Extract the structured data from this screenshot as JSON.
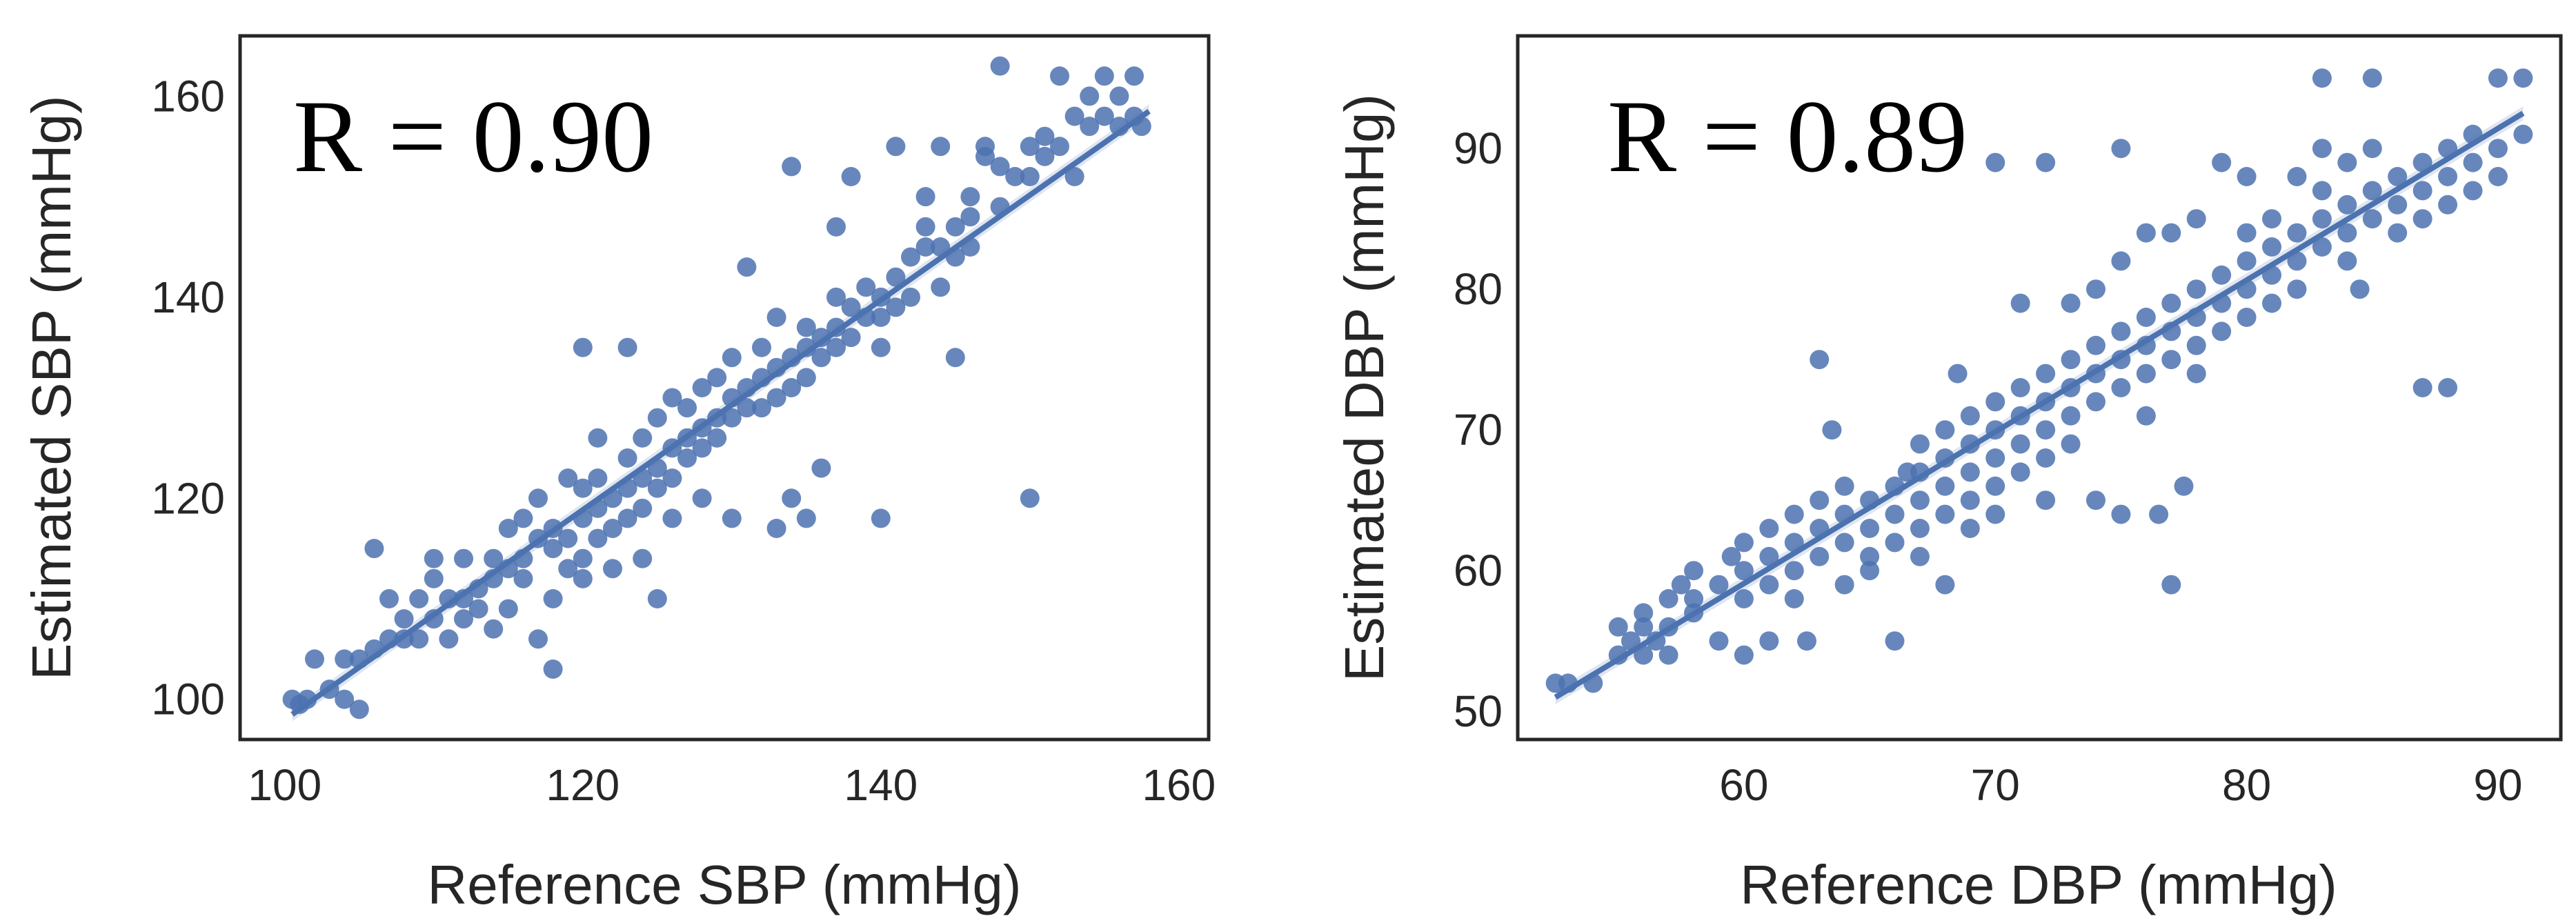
{
  "chart_data": [
    {
      "type": "scatter",
      "xlabel": "Reference SBP (mmHg)",
      "ylabel": "Estimated SBP (mmHg)",
      "annotation": "R = 0.90",
      "xlim": [
        97,
        162
      ],
      "ylim": [
        96,
        166
      ],
      "xticks": [
        100,
        120,
        140,
        160
      ],
      "yticks": [
        100,
        120,
        140,
        160
      ],
      "fit_line": {
        "x": [
          100.5,
          158
        ],
        "y": [
          98.5,
          158.5
        ]
      },
      "points": [
        [
          100.5,
          100
        ],
        [
          101,
          99.5
        ],
        [
          101.5,
          100
        ],
        [
          102,
          104
        ],
        [
          103,
          101
        ],
        [
          104,
          100
        ],
        [
          104,
          104
        ],
        [
          105,
          104
        ],
        [
          105,
          99
        ],
        [
          106,
          115
        ],
        [
          106,
          105
        ],
        [
          107,
          106
        ],
        [
          107,
          110
        ],
        [
          108,
          108
        ],
        [
          108,
          106
        ],
        [
          109,
          110
        ],
        [
          109,
          106
        ],
        [
          110,
          112
        ],
        [
          110,
          108
        ],
        [
          110,
          114
        ],
        [
          111,
          110
        ],
        [
          111,
          106
        ],
        [
          112,
          108
        ],
        [
          112,
          114
        ],
        [
          112,
          110
        ],
        [
          113,
          111
        ],
        [
          113,
          109
        ],
        [
          114,
          114
        ],
        [
          114,
          112
        ],
        [
          114,
          107
        ],
        [
          115,
          117
        ],
        [
          115,
          113
        ],
        [
          115,
          109
        ],
        [
          116,
          114
        ],
        [
          116,
          118
        ],
        [
          116,
          112
        ],
        [
          117,
          116
        ],
        [
          117,
          106
        ],
        [
          117,
          120
        ],
        [
          118,
          103
        ],
        [
          118,
          115
        ],
        [
          118,
          117
        ],
        [
          118,
          110
        ],
        [
          119,
          116
        ],
        [
          119,
          113
        ],
        [
          119,
          122
        ],
        [
          120,
          118
        ],
        [
          120,
          121
        ],
        [
          120,
          114
        ],
        [
          120,
          112
        ],
        [
          120,
          135
        ],
        [
          121,
          119
        ],
        [
          121,
          122
        ],
        [
          121,
          116
        ],
        [
          121,
          126
        ],
        [
          122,
          120
        ],
        [
          122,
          117
        ],
        [
          122,
          113
        ],
        [
          123,
          121
        ],
        [
          123,
          118
        ],
        [
          123,
          124
        ],
        [
          123,
          135
        ],
        [
          124,
          122
        ],
        [
          124,
          126
        ],
        [
          124,
          119
        ],
        [
          124,
          114
        ],
        [
          125,
          123
        ],
        [
          125,
          128
        ],
        [
          125,
          121
        ],
        [
          125,
          110
        ],
        [
          126,
          125
        ],
        [
          126,
          130
        ],
        [
          126,
          122
        ],
        [
          126,
          118
        ],
        [
          127,
          126
        ],
        [
          127,
          129
        ],
        [
          127,
          124
        ],
        [
          128,
          127
        ],
        [
          128,
          131
        ],
        [
          128,
          125
        ],
        [
          128,
          120
        ],
        [
          129,
          128
        ],
        [
          129,
          132
        ],
        [
          129,
          126
        ],
        [
          130,
          130
        ],
        [
          130,
          128
        ],
        [
          130,
          134
        ],
        [
          130,
          118
        ],
        [
          131,
          131
        ],
        [
          131,
          129
        ],
        [
          131,
          143
        ],
        [
          132,
          132
        ],
        [
          132,
          129
        ],
        [
          132,
          135
        ],
        [
          133,
          133
        ],
        [
          133,
          138
        ],
        [
          133,
          130
        ],
        [
          133,
          117
        ],
        [
          134,
          134
        ],
        [
          134,
          131
        ],
        [
          134,
          153
        ],
        [
          134,
          120
        ],
        [
          135,
          135
        ],
        [
          135,
          132
        ],
        [
          135,
          137
        ],
        [
          135,
          118
        ],
        [
          136,
          136
        ],
        [
          136,
          134
        ],
        [
          136,
          123
        ],
        [
          137,
          137
        ],
        [
          137,
          140
        ],
        [
          137,
          135
        ],
        [
          137,
          147
        ],
        [
          138,
          136
        ],
        [
          138,
          139
        ],
        [
          138,
          152
        ],
        [
          139,
          138
        ],
        [
          139,
          141
        ],
        [
          140,
          140
        ],
        [
          140,
          138
        ],
        [
          140,
          135
        ],
        [
          140,
          118
        ],
        [
          141,
          142
        ],
        [
          141,
          139
        ],
        [
          141,
          155
        ],
        [
          142,
          140
        ],
        [
          142,
          144
        ],
        [
          143,
          145
        ],
        [
          143,
          147
        ],
        [
          143,
          150
        ],
        [
          144,
          145
        ],
        [
          144,
          141
        ],
        [
          144,
          155
        ],
        [
          145,
          147
        ],
        [
          145,
          144
        ],
        [
          145,
          134
        ],
        [
          146,
          148
        ],
        [
          146,
          150
        ],
        [
          146,
          145
        ],
        [
          147,
          154
        ],
        [
          147,
          155
        ],
        [
          148,
          149
        ],
        [
          148,
          153
        ],
        [
          148,
          163
        ],
        [
          149,
          152
        ],
        [
          150,
          155
        ],
        [
          150,
          152
        ],
        [
          150,
          120
        ],
        [
          151,
          156
        ],
        [
          151,
          154
        ],
        [
          152,
          155
        ],
        [
          152,
          162
        ],
        [
          153,
          158
        ],
        [
          153,
          152
        ],
        [
          154,
          157
        ],
        [
          154,
          160
        ],
        [
          155,
          158
        ],
        [
          155,
          162
        ],
        [
          156,
          157
        ],
        [
          156,
          160
        ],
        [
          157,
          158
        ],
        [
          157,
          162
        ],
        [
          157.5,
          157
        ]
      ]
    },
    {
      "type": "scatter",
      "xlabel": "Reference DBP (mmHg)",
      "ylabel": "Estimated DBP (mmHg)",
      "annotation": "R = 0.89",
      "xlim": [
        51,
        92.5
      ],
      "ylim": [
        48,
        98
      ],
      "xticks": [
        60,
        70,
        80,
        90
      ],
      "yticks": [
        50,
        60,
        70,
        80,
        90
      ],
      "fit_line": {
        "x": [
          52.5,
          91
        ],
        "y": [
          51,
          92.5
        ]
      },
      "points": [
        [
          52.5,
          52
        ],
        [
          53,
          52
        ],
        [
          54,
          52
        ],
        [
          55,
          54
        ],
        [
          55,
          56
        ],
        [
          55.5,
          55
        ],
        [
          56,
          56
        ],
        [
          56,
          54
        ],
        [
          56,
          57
        ],
        [
          56.5,
          55
        ],
        [
          57,
          58
        ],
        [
          57,
          56
        ],
        [
          57,
          54
        ],
        [
          57.5,
          59
        ],
        [
          58,
          58
        ],
        [
          58,
          60
        ],
        [
          58,
          57
        ],
        [
          59,
          59
        ],
        [
          59,
          55
        ],
        [
          59.5,
          61
        ],
        [
          60,
          60
        ],
        [
          60,
          62
        ],
        [
          60,
          58
        ],
        [
          60,
          54
        ],
        [
          61,
          61
        ],
        [
          61,
          63
        ],
        [
          61,
          59
        ],
        [
          61,
          55
        ],
        [
          62,
          62
        ],
        [
          62,
          60
        ],
        [
          62,
          64
        ],
        [
          62,
          58
        ],
        [
          62.5,
          55
        ],
        [
          63,
          63
        ],
        [
          63,
          61
        ],
        [
          63,
          75
        ],
        [
          63,
          65
        ],
        [
          63.5,
          70
        ],
        [
          64,
          64
        ],
        [
          64,
          62
        ],
        [
          64,
          59
        ],
        [
          64,
          66
        ],
        [
          65,
          65
        ],
        [
          65,
          63
        ],
        [
          65,
          61
        ],
        [
          65,
          60
        ],
        [
          66,
          66
        ],
        [
          66,
          64
        ],
        [
          66,
          62
        ],
        [
          66,
          55
        ],
        [
          66.5,
          67
        ],
        [
          67,
          67
        ],
        [
          67,
          65
        ],
        [
          67,
          69
        ],
        [
          67,
          63
        ],
        [
          67,
          61
        ],
        [
          68,
          68
        ],
        [
          68,
          66
        ],
        [
          68,
          70
        ],
        [
          68,
          64
        ],
        [
          68,
          59
        ],
        [
          68.5,
          74
        ],
        [
          69,
          69
        ],
        [
          69,
          67
        ],
        [
          69,
          71
        ],
        [
          69,
          65
        ],
        [
          69,
          63
        ],
        [
          70,
          70
        ],
        [
          70,
          68
        ],
        [
          70,
          72
        ],
        [
          70,
          66
        ],
        [
          70,
          64
        ],
        [
          70,
          89
        ],
        [
          71,
          71
        ],
        [
          71,
          69
        ],
        [
          71,
          73
        ],
        [
          71,
          79
        ],
        [
          71,
          67
        ],
        [
          72,
          72
        ],
        [
          72,
          70
        ],
        [
          72,
          74
        ],
        [
          72,
          68
        ],
        [
          72,
          89
        ],
        [
          72,
          65
        ],
        [
          73,
          73
        ],
        [
          73,
          71
        ],
        [
          73,
          75
        ],
        [
          73,
          79
        ],
        [
          73,
          69
        ],
        [
          74,
          74
        ],
        [
          74,
          72
        ],
        [
          74,
          76
        ],
        [
          74,
          80
        ],
        [
          74,
          65
        ],
        [
          75,
          75
        ],
        [
          75,
          73
        ],
        [
          75,
          77
        ],
        [
          75,
          82
        ],
        [
          75,
          90
        ],
        [
          75,
          64
        ],
        [
          76,
          76
        ],
        [
          76,
          74
        ],
        [
          76,
          78
        ],
        [
          76,
          84
        ],
        [
          76,
          71
        ],
        [
          76.5,
          64
        ],
        [
          77,
          77
        ],
        [
          77,
          75
        ],
        [
          77,
          79
        ],
        [
          77,
          84
        ],
        [
          77,
          59
        ],
        [
          77.5,
          66
        ],
        [
          78,
          78
        ],
        [
          78,
          76
        ],
        [
          78,
          80
        ],
        [
          78,
          85
        ],
        [
          78,
          74
        ],
        [
          79,
          79
        ],
        [
          79,
          77
        ],
        [
          79,
          81
        ],
        [
          79,
          89
        ],
        [
          80,
          80
        ],
        [
          80,
          82
        ],
        [
          80,
          78
        ],
        [
          80,
          84
        ],
        [
          80,
          88
        ],
        [
          81,
          81
        ],
        [
          81,
          83
        ],
        [
          81,
          79
        ],
        [
          81,
          85
        ],
        [
          82,
          82
        ],
        [
          82,
          84
        ],
        [
          82,
          80
        ],
        [
          82,
          88
        ],
        [
          83,
          83
        ],
        [
          83,
          85
        ],
        [
          83,
          87
        ],
        [
          83,
          95
        ],
        [
          83,
          90
        ],
        [
          84,
          84
        ],
        [
          84,
          86
        ],
        [
          84,
          82
        ],
        [
          84,
          89
        ],
        [
          84.5,
          80
        ],
        [
          85,
          85
        ],
        [
          85,
          87
        ],
        [
          85,
          90
        ],
        [
          85,
          95
        ],
        [
          86,
          86
        ],
        [
          86,
          88
        ],
        [
          86,
          84
        ],
        [
          87,
          87
        ],
        [
          87,
          85
        ],
        [
          87,
          89
        ],
        [
          87,
          73
        ],
        [
          88,
          88
        ],
        [
          88,
          86
        ],
        [
          88,
          90
        ],
        [
          88,
          73
        ],
        [
          89,
          89
        ],
        [
          89,
          87
        ],
        [
          89,
          91
        ],
        [
          90,
          90
        ],
        [
          90,
          88
        ],
        [
          90,
          95
        ],
        [
          91,
          91
        ],
        [
          91,
          95
        ]
      ]
    }
  ]
}
